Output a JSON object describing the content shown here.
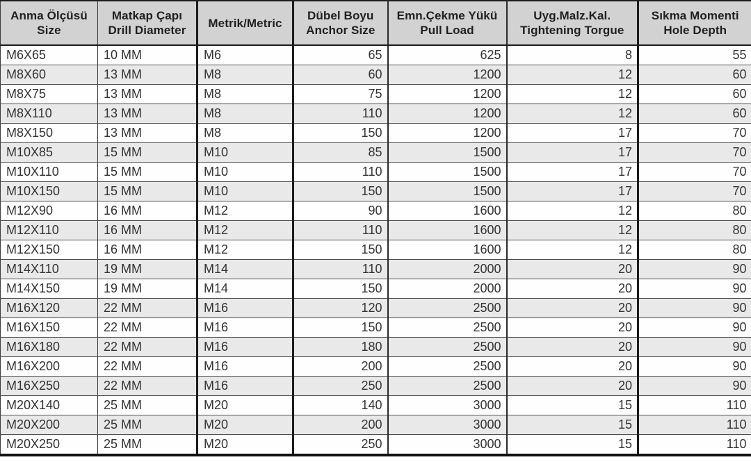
{
  "table": {
    "columns": [
      {
        "id": "size",
        "line1": "Anma Ölçüsü",
        "line2": "Size",
        "align": "left"
      },
      {
        "id": "drill",
        "line1": "Matkap Çapı",
        "line2": "Drill Diameter",
        "align": "left"
      },
      {
        "id": "metric",
        "line1": "Metrik/Metric",
        "line2": "",
        "align": "left"
      },
      {
        "id": "anchor",
        "line1": "Dübel Boyu",
        "line2": "Anchor Size",
        "align": "right"
      },
      {
        "id": "pull",
        "line1": "Emn.Çekme Yükü",
        "line2": "Pull Load",
        "align": "right"
      },
      {
        "id": "torque",
        "line1": "Uyg.Malz.Kal.",
        "line2": "Tightening Torgue",
        "align": "right"
      },
      {
        "id": "depth",
        "line1": "Sıkma Momenti",
        "line2": "Hole Depth",
        "align": "right"
      }
    ],
    "rows": [
      [
        "M6X65",
        "10 MM",
        "M6",
        "65",
        "625",
        "8",
        "55"
      ],
      [
        "M8X60",
        "13 MM",
        "M8",
        "60",
        "1200",
        "12",
        "60"
      ],
      [
        "M8X75",
        "13 MM",
        "M8",
        "75",
        "1200",
        "12",
        "60"
      ],
      [
        "M8X110",
        "13 MM",
        "M8",
        "110",
        "1200",
        "12",
        "60"
      ],
      [
        "M8X150",
        "13 MM",
        "M8",
        "150",
        "1200",
        "17",
        "70"
      ],
      [
        "M10X85",
        "15 MM",
        "M10",
        "85",
        "1500",
        "17",
        "70"
      ],
      [
        "M10X110",
        "15 MM",
        "M10",
        "110",
        "1500",
        "17",
        "70"
      ],
      [
        "M10X150",
        "15 MM",
        "M10",
        "150",
        "1500",
        "17",
        "70"
      ],
      [
        "M12X90",
        "16 MM",
        "M12",
        "90",
        "1600",
        "12",
        "80"
      ],
      [
        "M12X110",
        "16 MM",
        "M12",
        "110",
        "1600",
        "12",
        "80"
      ],
      [
        "M12X150",
        "16 MM",
        "M12",
        "150",
        "1600",
        "12",
        "80"
      ],
      [
        "M14X110",
        "19 MM",
        "M14",
        "110",
        "2000",
        "20",
        "90"
      ],
      [
        "M14X150",
        "19 MM",
        "M14",
        "150",
        "2000",
        "20",
        "90"
      ],
      [
        "M16X120",
        "22 MM",
        "M16",
        "120",
        "2500",
        "20",
        "90"
      ],
      [
        "M16X150",
        "22 MM",
        "M16",
        "150",
        "2500",
        "20",
        "90"
      ],
      [
        "M16X180",
        "22 MM",
        "M16",
        "180",
        "2500",
        "20",
        "90"
      ],
      [
        "M16X200",
        "22 MM",
        "M16",
        "200",
        "2500",
        "20",
        "90"
      ],
      [
        "M16X250",
        "22 MM",
        "M16",
        "250",
        "2500",
        "20",
        "90"
      ],
      [
        "M20X140",
        "25 MM",
        "M20",
        "140",
        "3000",
        "15",
        "110"
      ],
      [
        "M20X200",
        "25 MM",
        "M20",
        "200",
        "3000",
        "15",
        "110"
      ],
      [
        "M20X250",
        "25 MM",
        "M20",
        "250",
        "3000",
        "15",
        "110"
      ]
    ]
  },
  "colors": {
    "header_bg": "#d2d2d2",
    "row_bg": "#fefefe",
    "row_alt_bg": "#e9e9e9",
    "border_dark": "#1c1c1c",
    "border_light": "#4d4d4d",
    "text": "#333333"
  }
}
